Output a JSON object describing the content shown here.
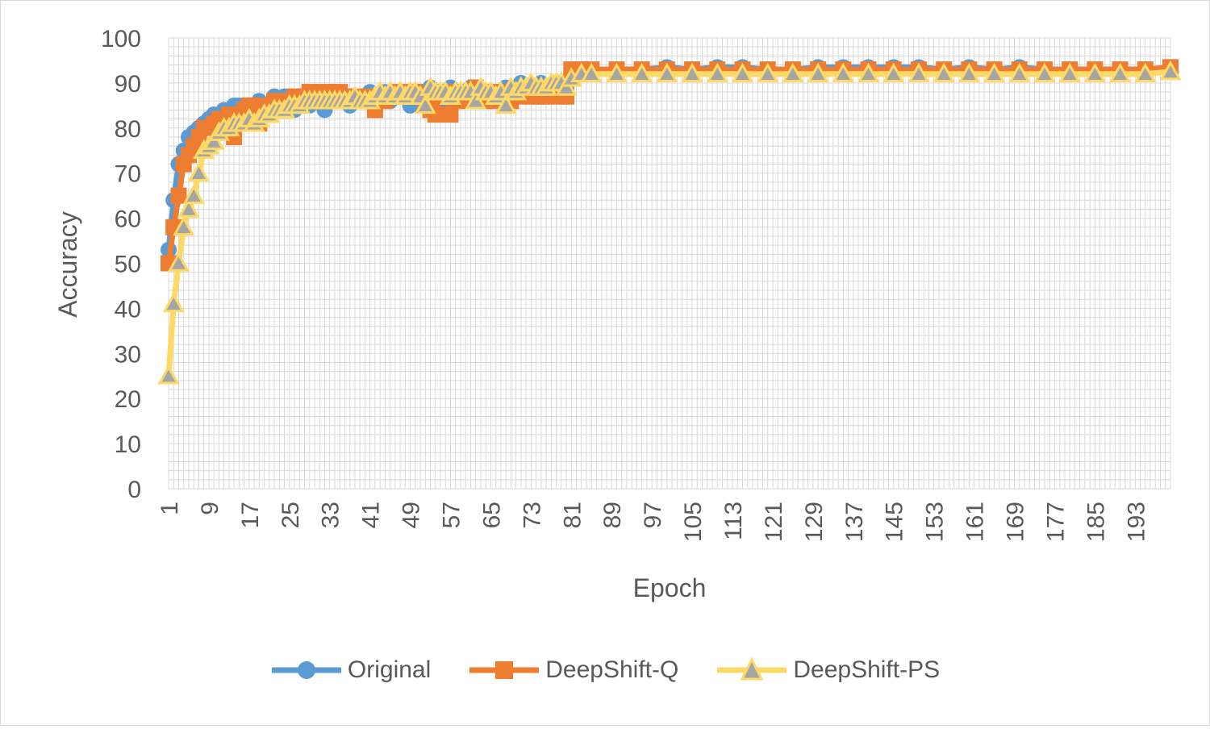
{
  "chart_data": {
    "type": "line",
    "xlabel": "Epoch",
    "ylabel": "Accuracy",
    "ylim": [
      0,
      100
    ],
    "y_ticks": [
      0,
      10,
      20,
      30,
      40,
      50,
      60,
      70,
      80,
      90,
      100
    ],
    "x_range": [
      1,
      200
    ],
    "x_tick_labels": [
      1,
      9,
      17,
      25,
      33,
      41,
      49,
      57,
      65,
      73,
      81,
      89,
      97,
      105,
      113,
      121,
      129,
      137,
      145,
      153,
      161,
      169,
      177,
      185,
      193
    ],
    "grid": true,
    "legend_position": "bottom",
    "series": [
      {
        "name": "Original",
        "color": "#5B9BD5",
        "marker": "circle",
        "points": [
          [
            1,
            53
          ],
          [
            2,
            64
          ],
          [
            3,
            72
          ],
          [
            4,
            75
          ],
          [
            5,
            78
          ],
          [
            6,
            79
          ],
          [
            7,
            80
          ],
          [
            8,
            81
          ],
          [
            9,
            82
          ],
          [
            10,
            83
          ],
          [
            11,
            83
          ],
          [
            12,
            84
          ],
          [
            13,
            84
          ],
          [
            14,
            85
          ],
          [
            15,
            85
          ],
          [
            16,
            85
          ],
          [
            17,
            85
          ],
          [
            18,
            84
          ],
          [
            19,
            86
          ],
          [
            20,
            84
          ],
          [
            21,
            85
          ],
          [
            22,
            87
          ],
          [
            23,
            86
          ],
          [
            24,
            87
          ],
          [
            25,
            85
          ],
          [
            26,
            84
          ],
          [
            27,
            87
          ],
          [
            28,
            86
          ],
          [
            29,
            85
          ],
          [
            30,
            88
          ],
          [
            31,
            86
          ],
          [
            32,
            84
          ],
          [
            33,
            87
          ],
          [
            34,
            86
          ],
          [
            35,
            88
          ],
          [
            36,
            86
          ],
          [
            37,
            85
          ],
          [
            38,
            87
          ],
          [
            39,
            86
          ],
          [
            40,
            87
          ],
          [
            41,
            88
          ],
          [
            42,
            86
          ],
          [
            43,
            87
          ],
          [
            44,
            88
          ],
          [
            45,
            86
          ],
          [
            46,
            87
          ],
          [
            47,
            88
          ],
          [
            48,
            87
          ],
          [
            49,
            85
          ],
          [
            50,
            87
          ],
          [
            51,
            88
          ],
          [
            52,
            86
          ],
          [
            53,
            89
          ],
          [
            54,
            87
          ],
          [
            55,
            88
          ],
          [
            56,
            86
          ],
          [
            57,
            89
          ],
          [
            58,
            88
          ],
          [
            59,
            87
          ],
          [
            60,
            88
          ],
          [
            61,
            89
          ],
          [
            62,
            86
          ],
          [
            63,
            88
          ],
          [
            64,
            87
          ],
          [
            65,
            86
          ],
          [
            66,
            88
          ],
          [
            67,
            86
          ],
          [
            68,
            89
          ],
          [
            69,
            87
          ],
          [
            70,
            88
          ],
          [
            71,
            90
          ],
          [
            72,
            88
          ],
          [
            73,
            89
          ],
          [
            74,
            88
          ],
          [
            75,
            90
          ],
          [
            76,
            89
          ],
          [
            77,
            88
          ],
          [
            78,
            90
          ],
          [
            79,
            89
          ],
          [
            80,
            89
          ],
          [
            81,
            92
          ],
          [
            83,
            93
          ],
          [
            85,
            92.5
          ],
          [
            90,
            93
          ],
          [
            95,
            93
          ],
          [
            100,
            93.5
          ],
          [
            105,
            93
          ],
          [
            110,
            93.5
          ],
          [
            115,
            93.5
          ],
          [
            120,
            93
          ],
          [
            125,
            93
          ],
          [
            130,
            93.5
          ],
          [
            135,
            93.5
          ],
          [
            140,
            93.5
          ],
          [
            145,
            93.5
          ],
          [
            150,
            93.5
          ],
          [
            155,
            93
          ],
          [
            160,
            93.5
          ],
          [
            165,
            93
          ],
          [
            170,
            93.5
          ],
          [
            175,
            93
          ],
          [
            180,
            93
          ],
          [
            185,
            93
          ],
          [
            190,
            93
          ],
          [
            195,
            93
          ],
          [
            200,
            93
          ]
        ]
      },
      {
        "name": "DeepShift-Q",
        "color": "#ED7D31",
        "marker": "square",
        "points": [
          [
            1,
            50
          ],
          [
            2,
            58
          ],
          [
            3,
            65
          ],
          [
            4,
            72
          ],
          [
            5,
            74
          ],
          [
            6,
            76
          ],
          [
            7,
            78
          ],
          [
            8,
            80
          ],
          [
            9,
            80
          ],
          [
            10,
            81
          ],
          [
            11,
            82
          ],
          [
            12,
            82
          ],
          [
            13,
            83
          ],
          [
            14,
            78
          ],
          [
            15,
            83
          ],
          [
            16,
            84
          ],
          [
            17,
            85
          ],
          [
            18,
            85
          ],
          [
            19,
            81
          ],
          [
            20,
            85
          ],
          [
            21,
            84
          ],
          [
            22,
            86
          ],
          [
            23,
            85
          ],
          [
            24,
            86
          ],
          [
            25,
            86
          ],
          [
            26,
            87
          ],
          [
            27,
            86
          ],
          [
            28,
            87
          ],
          [
            29,
            88
          ],
          [
            30,
            86
          ],
          [
            31,
            87
          ],
          [
            32,
            88
          ],
          [
            33,
            88
          ],
          [
            34,
            87
          ],
          [
            35,
            88
          ],
          [
            36,
            87
          ],
          [
            37,
            86
          ],
          [
            38,
            87
          ],
          [
            39,
            86
          ],
          [
            40,
            86
          ],
          [
            41,
            87
          ],
          [
            42,
            84
          ],
          [
            43,
            87
          ],
          [
            44,
            86
          ],
          [
            45,
            87
          ],
          [
            46,
            87
          ],
          [
            47,
            88
          ],
          [
            48,
            87
          ],
          [
            49,
            87
          ],
          [
            50,
            88
          ],
          [
            51,
            87
          ],
          [
            52,
            86
          ],
          [
            53,
            84
          ],
          [
            54,
            83
          ],
          [
            55,
            87
          ],
          [
            56,
            88
          ],
          [
            57,
            83
          ],
          [
            58,
            88
          ],
          [
            59,
            86
          ],
          [
            60,
            88
          ],
          [
            61,
            87
          ],
          [
            62,
            89
          ],
          [
            63,
            87
          ],
          [
            64,
            88
          ],
          [
            65,
            86
          ],
          [
            66,
            87
          ],
          [
            67,
            88
          ],
          [
            68,
            88
          ],
          [
            69,
            86
          ],
          [
            70,
            88
          ],
          [
            71,
            88
          ],
          [
            72,
            87
          ],
          [
            73,
            87
          ],
          [
            74,
            88
          ],
          [
            75,
            87
          ],
          [
            76,
            87
          ],
          [
            77,
            89
          ],
          [
            78,
            88
          ],
          [
            79,
            87
          ],
          [
            80,
            87
          ],
          [
            81,
            93
          ],
          [
            83,
            93
          ],
          [
            85,
            93
          ],
          [
            90,
            93
          ],
          [
            95,
            93
          ],
          [
            100,
            93
          ],
          [
            105,
            93
          ],
          [
            110,
            93
          ],
          [
            115,
            93
          ],
          [
            120,
            93
          ],
          [
            125,
            93
          ],
          [
            130,
            93
          ],
          [
            135,
            93
          ],
          [
            140,
            93
          ],
          [
            145,
            93
          ],
          [
            150,
            93
          ],
          [
            155,
            93
          ],
          [
            160,
            93
          ],
          [
            165,
            93
          ],
          [
            170,
            93
          ],
          [
            175,
            93
          ],
          [
            180,
            93
          ],
          [
            185,
            93
          ],
          [
            190,
            93
          ],
          [
            195,
            93
          ],
          [
            200,
            93.5
          ]
        ]
      },
      {
        "name": "DeepShift-PS",
        "color": "#FFD966",
        "marker": "triangle",
        "points": [
          [
            1,
            25
          ],
          [
            2,
            41
          ],
          [
            3,
            50
          ],
          [
            4,
            58
          ],
          [
            5,
            62
          ],
          [
            6,
            65
          ],
          [
            7,
            70
          ],
          [
            8,
            75
          ],
          [
            9,
            76
          ],
          [
            10,
            77
          ],
          [
            11,
            79
          ],
          [
            12,
            80
          ],
          [
            13,
            80
          ],
          [
            14,
            81
          ],
          [
            15,
            81
          ],
          [
            16,
            81
          ],
          [
            17,
            82
          ],
          [
            18,
            81
          ],
          [
            19,
            82
          ],
          [
            20,
            83
          ],
          [
            21,
            83
          ],
          [
            22,
            84
          ],
          [
            23,
            84
          ],
          [
            24,
            84
          ],
          [
            25,
            85
          ],
          [
            26,
            85
          ],
          [
            27,
            85
          ],
          [
            28,
            86
          ],
          [
            29,
            86
          ],
          [
            30,
            86
          ],
          [
            31,
            86
          ],
          [
            32,
            86
          ],
          [
            33,
            86
          ],
          [
            34,
            86
          ],
          [
            35,
            86
          ],
          [
            36,
            86
          ],
          [
            37,
            86
          ],
          [
            38,
            87
          ],
          [
            39,
            86
          ],
          [
            40,
            86
          ],
          [
            41,
            86
          ],
          [
            42,
            87
          ],
          [
            43,
            88
          ],
          [
            44,
            87
          ],
          [
            45,
            88
          ],
          [
            46,
            87
          ],
          [
            47,
            88
          ],
          [
            48,
            87
          ],
          [
            49,
            88
          ],
          [
            50,
            88
          ],
          [
            51,
            87
          ],
          [
            52,
            85
          ],
          [
            53,
            89
          ],
          [
            54,
            88
          ],
          [
            55,
            88
          ],
          [
            56,
            88
          ],
          [
            57,
            87
          ],
          [
            58,
            88
          ],
          [
            59,
            88
          ],
          [
            60,
            88
          ],
          [
            61,
            88
          ],
          [
            62,
            86
          ],
          [
            63,
            89
          ],
          [
            64,
            88
          ],
          [
            65,
            88
          ],
          [
            66,
            87
          ],
          [
            67,
            88
          ],
          [
            68,
            85
          ],
          [
            69,
            89
          ],
          [
            70,
            88
          ],
          [
            71,
            89
          ],
          [
            72,
            89
          ],
          [
            73,
            90
          ],
          [
            74,
            89
          ],
          [
            75,
            89
          ],
          [
            76,
            89
          ],
          [
            77,
            90
          ],
          [
            78,
            90
          ],
          [
            79,
            90
          ],
          [
            80,
            89
          ],
          [
            81,
            91
          ],
          [
            83,
            92
          ],
          [
            85,
            92
          ],
          [
            90,
            92
          ],
          [
            95,
            92
          ],
          [
            100,
            92
          ],
          [
            105,
            92
          ],
          [
            110,
            92
          ],
          [
            115,
            92
          ],
          [
            120,
            92
          ],
          [
            125,
            92
          ],
          [
            130,
            92
          ],
          [
            135,
            92
          ],
          [
            140,
            92
          ],
          [
            145,
            92
          ],
          [
            150,
            92
          ],
          [
            155,
            92
          ],
          [
            160,
            92
          ],
          [
            165,
            92
          ],
          [
            170,
            92
          ],
          [
            175,
            92
          ],
          [
            180,
            92
          ],
          [
            185,
            92
          ],
          [
            190,
            92
          ],
          [
            195,
            92
          ],
          [
            200,
            92.5
          ]
        ]
      }
    ]
  }
}
